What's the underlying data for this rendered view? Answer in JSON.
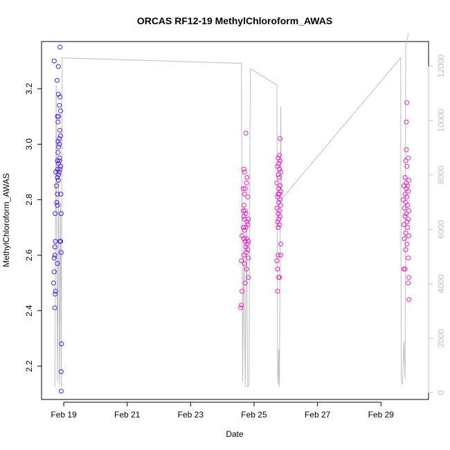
{
  "chart_data": {
    "type": "scatter",
    "title": "ORCAS RF12-19 MethylChloroform_AWAS",
    "xlabel": "Date",
    "ylabel": "MethylChloroform_AWAS",
    "x_ticks": [
      "Feb 19",
      "Feb 21",
      "Feb 23",
      "Feb 25",
      "Feb 27",
      "Feb 29"
    ],
    "x_tick_days": [
      19,
      21,
      23,
      25,
      27,
      29
    ],
    "xlim_days": [
      18.3,
      30.5
    ],
    "y_ticks": [
      "2.2",
      "2.4",
      "2.6",
      "2.8",
      "3.0",
      "3.2"
    ],
    "y_tick_values": [
      2.2,
      2.4,
      2.6,
      2.8,
      3.0,
      3.2
    ],
    "ylim": [
      2.08,
      3.37
    ],
    "y2_ticks": [
      "0",
      "2000",
      "4000",
      "6000",
      "8000",
      "10000",
      "12000"
    ],
    "y2_tick_values": [
      0,
      2000,
      4000,
      6000,
      8000,
      10000,
      12000
    ],
    "y2lim": [
      -250,
      12900
    ],
    "colors": {
      "early": "#4b1cf2",
      "late": "#f21ccc",
      "altitude": "#bdbdbd"
    },
    "series": [
      {
        "values": [
          [
            18.7,
            3.3
          ],
          [
            18.88,
            3.35
          ],
          [
            18.83,
            3.28
          ],
          [
            18.79,
            3.23
          ],
          [
            18.83,
            3.18
          ],
          [
            18.88,
            3.17
          ],
          [
            18.86,
            3.14
          ],
          [
            18.9,
            3.12
          ],
          [
            18.84,
            3.1
          ],
          [
            18.8,
            3.1
          ],
          [
            18.82,
            3.08
          ],
          [
            18.88,
            3.05
          ],
          [
            18.9,
            3.03
          ],
          [
            18.86,
            3.02
          ],
          [
            18.82,
            3.01
          ],
          [
            18.86,
            3.0
          ],
          [
            18.84,
            2.99
          ],
          [
            18.82,
            2.97
          ],
          [
            18.87,
            2.95
          ],
          [
            18.8,
            2.94
          ],
          [
            18.86,
            2.94
          ],
          [
            18.84,
            2.93
          ],
          [
            18.9,
            2.92
          ],
          [
            18.81,
            2.91
          ],
          [
            18.88,
            2.91
          ],
          [
            18.85,
            2.9
          ],
          [
            18.75,
            2.9
          ],
          [
            18.84,
            2.89
          ],
          [
            18.8,
            2.88
          ],
          [
            18.83,
            2.87
          ],
          [
            18.77,
            2.85
          ],
          [
            18.8,
            2.82
          ],
          [
            18.91,
            2.82
          ],
          [
            18.78,
            2.79
          ],
          [
            18.8,
            2.78
          ],
          [
            18.73,
            2.75
          ],
          [
            18.92,
            2.75
          ],
          [
            18.74,
            2.65
          ],
          [
            18.9,
            2.65
          ],
          [
            18.88,
            2.65
          ],
          [
            18.72,
            2.63
          ],
          [
            18.92,
            2.61
          ],
          [
            18.72,
            2.6
          ],
          [
            18.7,
            2.59
          ],
          [
            18.8,
            2.57
          ],
          [
            18.7,
            2.54
          ],
          [
            18.68,
            2.5
          ],
          [
            18.74,
            2.47
          ],
          [
            18.73,
            2.46
          ],
          [
            18.72,
            2.41
          ],
          [
            18.93,
            2.28
          ],
          [
            18.92,
            2.18
          ],
          [
            18.92,
            2.11
          ]
        ]
      },
      {
        "values": [
          [
            24.74,
            3.04
          ],
          [
            24.68,
            2.91
          ],
          [
            24.7,
            2.9
          ],
          [
            24.78,
            2.88
          ],
          [
            24.76,
            2.86
          ],
          [
            24.72,
            2.84
          ],
          [
            24.66,
            2.84
          ],
          [
            24.7,
            2.82
          ],
          [
            24.8,
            2.81
          ],
          [
            24.68,
            2.78
          ],
          [
            24.66,
            2.76
          ],
          [
            24.72,
            2.76
          ],
          [
            24.74,
            2.75
          ],
          [
            24.68,
            2.74
          ],
          [
            24.7,
            2.73
          ],
          [
            24.82,
            2.73
          ],
          [
            24.78,
            2.72
          ],
          [
            24.8,
            2.71
          ],
          [
            24.74,
            2.7
          ],
          [
            24.66,
            2.7
          ],
          [
            24.7,
            2.69
          ],
          [
            24.62,
            2.67
          ],
          [
            24.76,
            2.66
          ],
          [
            24.68,
            2.66
          ],
          [
            24.82,
            2.65
          ],
          [
            24.72,
            2.65
          ],
          [
            24.78,
            2.64
          ],
          [
            24.74,
            2.63
          ],
          [
            24.8,
            2.62
          ],
          [
            24.76,
            2.61
          ],
          [
            24.68,
            2.6
          ],
          [
            24.82,
            2.59
          ],
          [
            24.6,
            2.58
          ],
          [
            24.7,
            2.57
          ],
          [
            24.76,
            2.55
          ],
          [
            24.82,
            2.52
          ],
          [
            24.72,
            2.5
          ],
          [
            24.62,
            2.47
          ],
          [
            24.6,
            2.42
          ],
          [
            24.58,
            2.41
          ],
          [
            25.82,
            3.02
          ],
          [
            25.8,
            2.96
          ],
          [
            25.76,
            2.95
          ],
          [
            25.82,
            2.94
          ],
          [
            25.78,
            2.93
          ],
          [
            25.74,
            2.92
          ],
          [
            25.8,
            2.91
          ],
          [
            25.84,
            2.9
          ],
          [
            25.76,
            2.89
          ],
          [
            25.8,
            2.88
          ],
          [
            25.72,
            2.86
          ],
          [
            25.82,
            2.85
          ],
          [
            25.78,
            2.84
          ],
          [
            25.84,
            2.83
          ],
          [
            25.76,
            2.82
          ],
          [
            25.8,
            2.82
          ],
          [
            25.74,
            2.81
          ],
          [
            25.82,
            2.8
          ],
          [
            25.78,
            2.79
          ],
          [
            25.84,
            2.78
          ],
          [
            25.72,
            2.77
          ],
          [
            25.8,
            2.76
          ],
          [
            25.76,
            2.75
          ],
          [
            25.82,
            2.74
          ],
          [
            25.78,
            2.73
          ],
          [
            25.74,
            2.72
          ],
          [
            25.8,
            2.71
          ],
          [
            25.76,
            2.7
          ],
          [
            25.84,
            2.64
          ],
          [
            25.76,
            2.6
          ],
          [
            25.84,
            2.6
          ],
          [
            25.72,
            2.58
          ],
          [
            25.74,
            2.55
          ],
          [
            25.78,
            2.52
          ],
          [
            25.8,
            2.52
          ],
          [
            25.74,
            2.47
          ],
          [
            29.82,
            3.15
          ],
          [
            29.8,
            3.08
          ],
          [
            29.8,
            2.98
          ],
          [
            29.86,
            2.95
          ],
          [
            29.78,
            2.94
          ],
          [
            29.82,
            2.92
          ],
          [
            29.76,
            2.88
          ],
          [
            29.88,
            2.87
          ],
          [
            29.8,
            2.86
          ],
          [
            29.84,
            2.85
          ],
          [
            29.72,
            2.85
          ],
          [
            29.8,
            2.84
          ],
          [
            29.86,
            2.83
          ],
          [
            29.76,
            2.82
          ],
          [
            29.82,
            2.81
          ],
          [
            29.7,
            2.8
          ],
          [
            29.78,
            2.79
          ],
          [
            29.84,
            2.78
          ],
          [
            29.74,
            2.77
          ],
          [
            29.88,
            2.76
          ],
          [
            29.8,
            2.75
          ],
          [
            29.76,
            2.74
          ],
          [
            29.86,
            2.73
          ],
          [
            29.82,
            2.72
          ],
          [
            29.72,
            2.71
          ],
          [
            29.84,
            2.7
          ],
          [
            29.78,
            2.68
          ],
          [
            29.88,
            2.67
          ],
          [
            29.74,
            2.66
          ],
          [
            29.82,
            2.64
          ],
          [
            29.78,
            2.62
          ],
          [
            29.86,
            2.59
          ],
          [
            29.72,
            2.55
          ],
          [
            29.76,
            2.55
          ],
          [
            29.88,
            2.52
          ],
          [
            29.86,
            2.5
          ],
          [
            29.88,
            2.44
          ]
        ]
      },
      {
        "type": "line",
        "values": [
          [
            18.72,
            200
          ],
          [
            18.76,
            11300
          ],
          [
            18.8,
            400
          ],
          [
            18.84,
            8500
          ],
          [
            18.86,
            300
          ],
          [
            18.9,
            7000
          ],
          [
            18.92,
            200
          ],
          [
            18.95,
            12300
          ],
          [
            24.6,
            12100
          ],
          [
            24.64,
            400
          ],
          [
            24.68,
            5600
          ],
          [
            24.72,
            200
          ],
          [
            24.76,
            6400
          ],
          [
            24.8,
            200
          ],
          [
            24.84,
            300
          ],
          [
            24.88,
            11900
          ],
          [
            25.72,
            11300
          ],
          [
            25.74,
            800
          ],
          [
            25.76,
            300
          ],
          [
            25.78,
            1600
          ],
          [
            25.8,
            200
          ],
          [
            25.84,
            10500
          ],
          [
            25.86,
            7100
          ],
          [
            29.62,
            12300
          ],
          [
            29.64,
            400
          ],
          [
            29.68,
            300
          ],
          [
            29.72,
            1900
          ],
          [
            29.76,
            500
          ],
          [
            29.78,
            12700
          ],
          [
            29.86,
            13200
          ]
        ]
      }
    ]
  }
}
